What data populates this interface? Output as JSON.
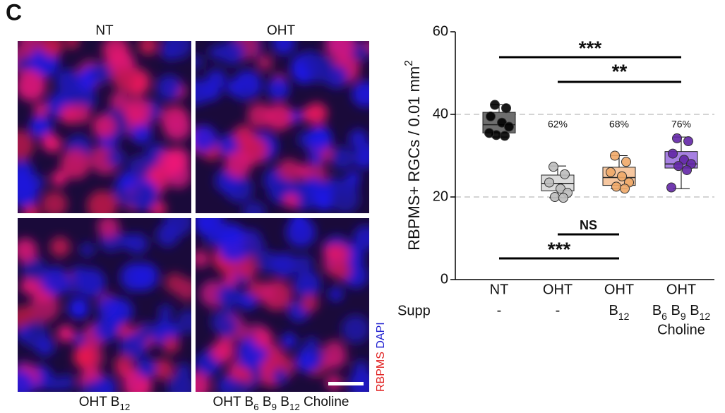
{
  "panel_label": "C",
  "images": [
    {
      "label": [
        {
          "t": "NT"
        }
      ]
    },
    {
      "label": [
        {
          "t": "OHT"
        }
      ]
    },
    {
      "label": [
        {
          "t": "OHT B"
        },
        {
          "t": "12",
          "sub": true
        }
      ]
    },
    {
      "label": [
        {
          "t": "OHT B"
        },
        {
          "t": "6",
          "sub": true
        },
        {
          "t": " B"
        },
        {
          "t": "9",
          "sub": true
        },
        {
          "t": " B"
        },
        {
          "t": "12",
          "sub": true
        },
        {
          "t": " Choline"
        }
      ]
    }
  ],
  "stain_labels": [
    {
      "text": "RBPMS",
      "color": "#e02020"
    },
    {
      "text": " DAPI",
      "color": "#2020d0"
    }
  ],
  "chart_data": {
    "type": "box",
    "ylabel": [
      {
        "t": "RBPMS+ RGCs / 0.01 mm"
      },
      {
        "t": "2",
        "sup": true
      }
    ],
    "ylim": [
      0,
      60
    ],
    "yticks": [
      0,
      20,
      40,
      60
    ],
    "grid": "dashed",
    "categories": [
      "NT",
      "OHT",
      "OHT",
      "OHT"
    ],
    "supp_label": "Supp",
    "supp": [
      [
        {
          "t": "-"
        }
      ],
      [
        {
          "t": "-"
        }
      ],
      [
        {
          "t": "B"
        },
        {
          "t": "12",
          "sub": true
        }
      ],
      [
        {
          "t": "B"
        },
        {
          "t": "6",
          "sub": true
        },
        {
          "t": " B"
        },
        {
          "t": "9",
          "sub": true
        },
        {
          "t": " B"
        },
        {
          "t": "12",
          "sub": true
        }
      ]
    ],
    "supp_extra": [
      null,
      null,
      null,
      "Choline"
    ],
    "groups": [
      {
        "color": "#6e6e6e",
        "point_color": "#000000",
        "box": {
          "whislo": 34.5,
          "q1": 35.5,
          "med": 37.5,
          "q3": 40.5,
          "whishi": 42.3
        },
        "points": [
          42.3,
          41.5,
          39.5,
          38,
          37,
          35,
          34.8,
          35.5
        ]
      },
      {
        "color": "#dcdcdc",
        "point_color": "#bdbdbd",
        "box": {
          "whislo": 19.8,
          "q1": 21.5,
          "med": 23.3,
          "q3": 25.3,
          "whishi": 27.5
        },
        "points": [
          27.3,
          25.5,
          23.5,
          22,
          21,
          20,
          19.8
        ]
      },
      {
        "color": "#f6c7a0",
        "point_color": "#f0a868",
        "box": {
          "whislo": 22,
          "q1": 22.8,
          "med": 24.7,
          "q3": 27.2,
          "whishi": 30
        },
        "points": [
          30,
          28.5,
          26,
          25,
          23.5,
          22.5,
          22
        ]
      },
      {
        "color": "#a780e2",
        "point_color": "#6326a6",
        "box": {
          "whislo": 22,
          "q1": 27,
          "med": 28,
          "q3": 31,
          "whishi": 34.5
        },
        "points": [
          34.2,
          33.5,
          30.5,
          29,
          28,
          27.5,
          26.5,
          22.3
        ]
      }
    ],
    "percent": {
      "values": [
        null,
        62,
        68,
        76
      ],
      "value_labels": [
        null,
        "62%",
        "68%",
        "76%"
      ]
    },
    "annotations": [
      "***",
      "**",
      "NS",
      "***"
    ]
  }
}
